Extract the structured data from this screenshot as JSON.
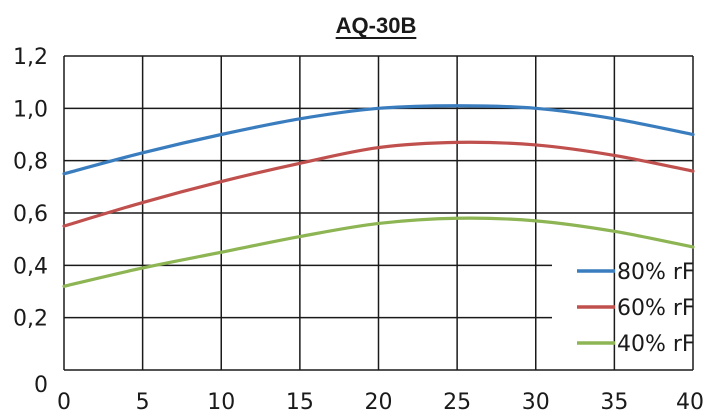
{
  "chart_data": {
    "type": "line",
    "title": "AQ-30B",
    "xlabel": "",
    "ylabel": "",
    "xlim": [
      0,
      40
    ],
    "ylim": [
      0,
      1.2
    ],
    "x_ticks": [
      "0",
      "5",
      "10",
      "15",
      "20",
      "25",
      "30",
      "35",
      "40"
    ],
    "y_ticks": [
      "0",
      "0,2",
      "0,4",
      "0,6",
      "0,8",
      "1,0",
      "1,2"
    ],
    "grid": true,
    "legend_position": "bottom-right",
    "series": [
      {
        "name": "80% rF",
        "color": "#3a7dbf",
        "x": [
          0,
          5,
          10,
          15,
          20,
          25,
          30,
          35,
          40
        ],
        "y": [
          0.75,
          0.83,
          0.9,
          0.96,
          1.0,
          1.01,
          1.0,
          0.96,
          0.9
        ]
      },
      {
        "name": "60% rF",
        "color": "#c0504d",
        "x": [
          0,
          5,
          10,
          15,
          20,
          25,
          30,
          35,
          40
        ],
        "y": [
          0.55,
          0.64,
          0.72,
          0.79,
          0.85,
          0.87,
          0.86,
          0.82,
          0.76
        ]
      },
      {
        "name": "40% rF",
        "color": "#8db553",
        "x": [
          0,
          5,
          10,
          15,
          20,
          25,
          30,
          35,
          40
        ],
        "y": [
          0.32,
          0.39,
          0.45,
          0.51,
          0.56,
          0.58,
          0.57,
          0.53,
          0.47
        ]
      }
    ]
  }
}
